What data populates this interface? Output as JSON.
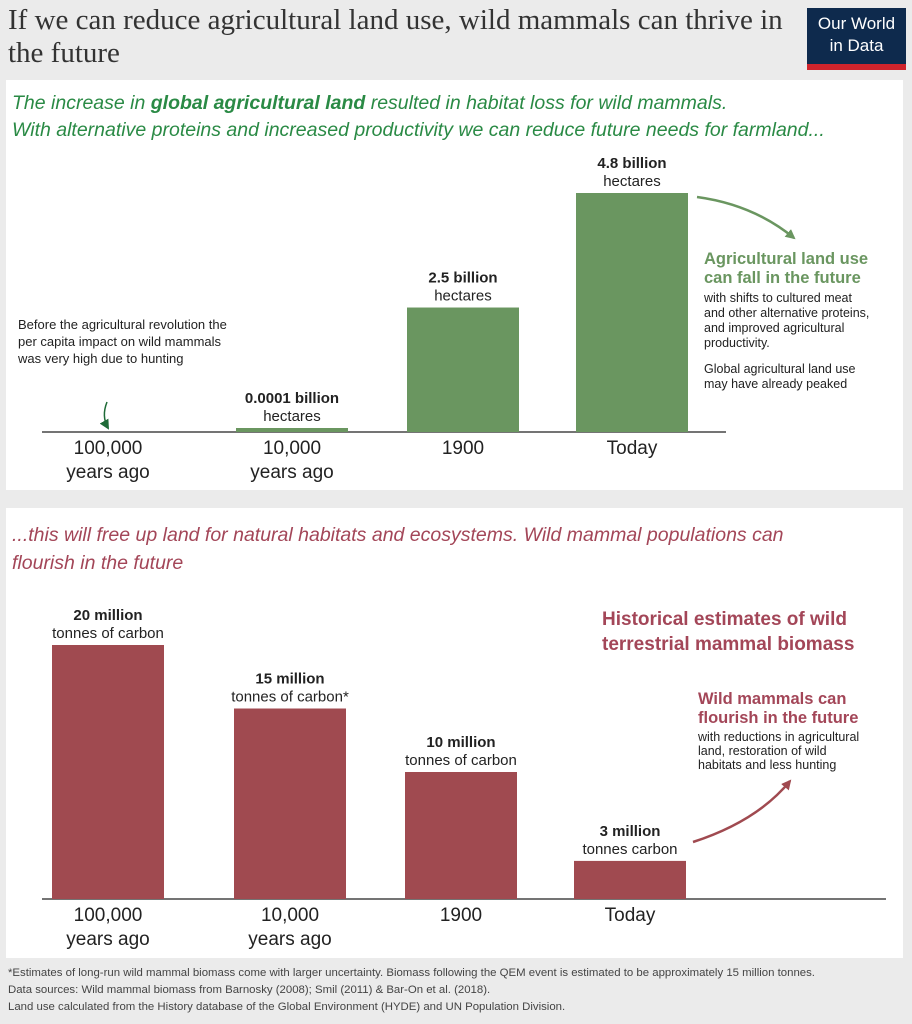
{
  "header": {
    "title": "If we can reduce agricultural land use, wild mammals can thrive in the future",
    "logo_line1": "Our World",
    "logo_line2": "in Data"
  },
  "colors": {
    "green": "#6a9660",
    "green_text": "#2a8a45",
    "red": "#a04a50",
    "red_text": "#a34658",
    "axis": "#222222"
  },
  "top_panel": {
    "intro_part1": "The increase in ",
    "intro_bold": "global agricultural land",
    "intro_part2": " resulted in habitat loss for wild mammals.",
    "intro_line2": "With alternative proteins and increased productivity we can reduce future needs for farmland...",
    "pre_note": [
      "Before the agricultural revolution the",
      "per capita impact on wild mammals",
      "was very high due to hunting"
    ],
    "future_heading": [
      "Agricultural land use",
      "can fall in the future"
    ],
    "future_body": [
      "with shifts to cultured meat",
      "and other alternative proteins,",
      "and improved agricultural",
      "productivity."
    ],
    "peak_note": [
      "Global agricultural land use",
      "may have already peaked"
    ]
  },
  "bottom_panel": {
    "intro": [
      "...this will free up land for natural habitats and ecosystems. Wild mammal populations can",
      "flourish in the future"
    ],
    "chart_title": [
      "Historical estimates of wild",
      "terrestrial mammal biomass"
    ],
    "future_heading": [
      "Wild mammals can",
      "flourish in the future"
    ],
    "future_body": [
      "with reductions in agricultural",
      "land, restoration of wild",
      "habitats and less hunting"
    ]
  },
  "chart_data": [
    {
      "type": "bar",
      "categories": [
        [
          "100,000",
          "years ago"
        ],
        [
          "10,000",
          "years ago"
        ],
        [
          "1900"
        ],
        [
          "Today"
        ]
      ],
      "values": [
        0,
        0.0001,
        2.5,
        4.8
      ],
      "value_labels": [
        "",
        "0.0001 billion",
        "2.5 billion",
        "4.8 billion"
      ],
      "unit_labels": [
        "",
        "hectares",
        "hectares",
        "hectares"
      ],
      "ylim": [
        0,
        4.8
      ]
    },
    {
      "type": "bar",
      "categories": [
        [
          "100,000",
          "years ago"
        ],
        [
          "10,000",
          "years ago"
        ],
        [
          "1900"
        ],
        [
          "Today"
        ]
      ],
      "values": [
        20,
        15,
        10,
        3
      ],
      "value_labels": [
        "20 million",
        "15 million",
        "10 million",
        "3 million"
      ],
      "unit_labels": [
        "tonnes of carbon",
        "tonnes of carbon*",
        "tonnes of carbon",
        "tonnes carbon"
      ],
      "ylim": [
        0,
        20
      ]
    }
  ],
  "footer": {
    "note": "*Estimates of long-run wild mammal biomass come with larger uncertainty. Biomass following the QEM event is estimated to be approximately 15 million tonnes.",
    "sources": "Data sources: Wild mammal biomass from Barnosky (2008); Smil (2011) & Bar-On et al. (2018).",
    "land_use": "Land use calculated from the History database of the Global Environment (HYDE) and UN Population Division."
  }
}
